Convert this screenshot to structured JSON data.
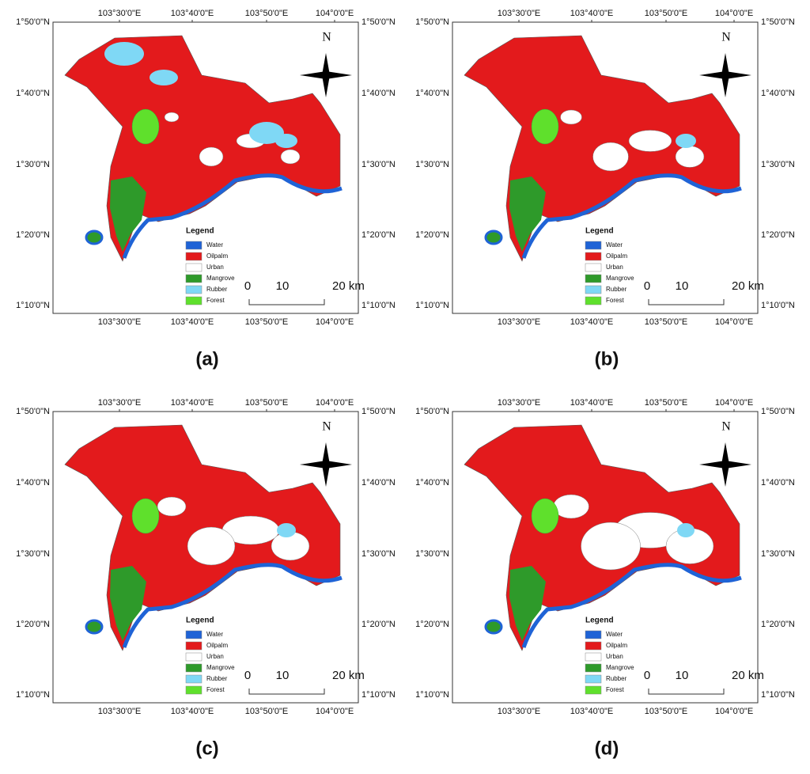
{
  "axes": {
    "longitudes": [
      "103°30'0\"E",
      "103°40'0\"E",
      "103°50'0\"E",
      "104°0'0\"E"
    ],
    "latitudes": [
      "1°50'0\"N",
      "1°40'0\"N",
      "1°30'0\"N",
      "1°20'0\"N",
      "1°10'0\"N"
    ]
  },
  "north": "N",
  "legend": {
    "title": "Legend",
    "items": [
      {
        "label": "Water",
        "color": "#1f63d6"
      },
      {
        "label": "Oilpalm",
        "color": "#e31a1c"
      },
      {
        "label": "Urban",
        "color": "#ffffff"
      },
      {
        "label": "Mangrove",
        "color": "#2e9a2a"
      },
      {
        "label": "Rubber",
        "color": "#7fd8f5"
      },
      {
        "label": "Forest",
        "color": "#5fe02c"
      }
    ]
  },
  "scale_bar": {
    "labels": [
      "0",
      "10",
      "20 km"
    ]
  },
  "panels": [
    {
      "label": "(a)"
    },
    {
      "label": "(b)"
    },
    {
      "label": "(c)"
    },
    {
      "label": "(d)"
    }
  ]
}
